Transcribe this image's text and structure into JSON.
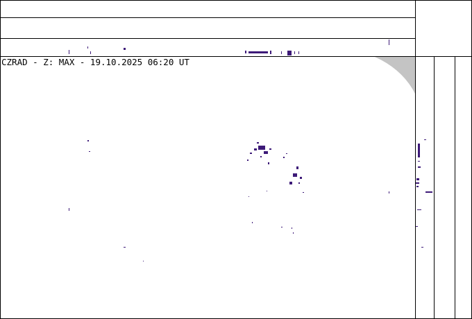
{
  "header": {
    "title": "CZRAD - Z: MAX - 19.10.2025 06:20 UT"
  }
}
